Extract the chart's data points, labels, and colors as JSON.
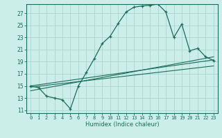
{
  "xlabel": "Humidex (Indice chaleur)",
  "bg_color": "#cceee8",
  "line_color": "#1a6b5a",
  "grid_color": "#aad4cc",
  "xlim": [
    -0.5,
    23.5
  ],
  "ylim": [
    10.5,
    28.5
  ],
  "xticks": [
    0,
    1,
    2,
    3,
    4,
    5,
    6,
    7,
    8,
    9,
    10,
    11,
    12,
    13,
    14,
    15,
    16,
    17,
    18,
    19,
    20,
    21,
    22,
    23
  ],
  "yticks": [
    11,
    13,
    15,
    17,
    19,
    21,
    23,
    25,
    27
  ],
  "main_x": [
    0,
    1,
    2,
    3,
    4,
    5,
    6,
    7,
    8,
    9,
    10,
    11,
    12,
    13,
    14,
    15,
    16,
    17,
    18,
    19,
    20,
    21,
    22,
    23
  ],
  "main_y": [
    15,
    14.7,
    13.3,
    13.0,
    12.7,
    11.2,
    15.0,
    17.2,
    19.5,
    22.0,
    23.2,
    25.3,
    27.2,
    28.0,
    28.2,
    28.3,
    28.5,
    27.2,
    23.0,
    25.2,
    20.8,
    21.2,
    19.8,
    19.2
  ],
  "line2_x": [
    0,
    23
  ],
  "line2_y": [
    15.0,
    19.3
  ],
  "line3_x": [
    0,
    23
  ],
  "line3_y": [
    14.8,
    18.3
  ],
  "line4_x": [
    0,
    23
  ],
  "line4_y": [
    14.2,
    19.8
  ],
  "xlabel_fontsize": 6.0,
  "xtick_fontsize": 5.0,
  "ytick_fontsize": 5.5
}
